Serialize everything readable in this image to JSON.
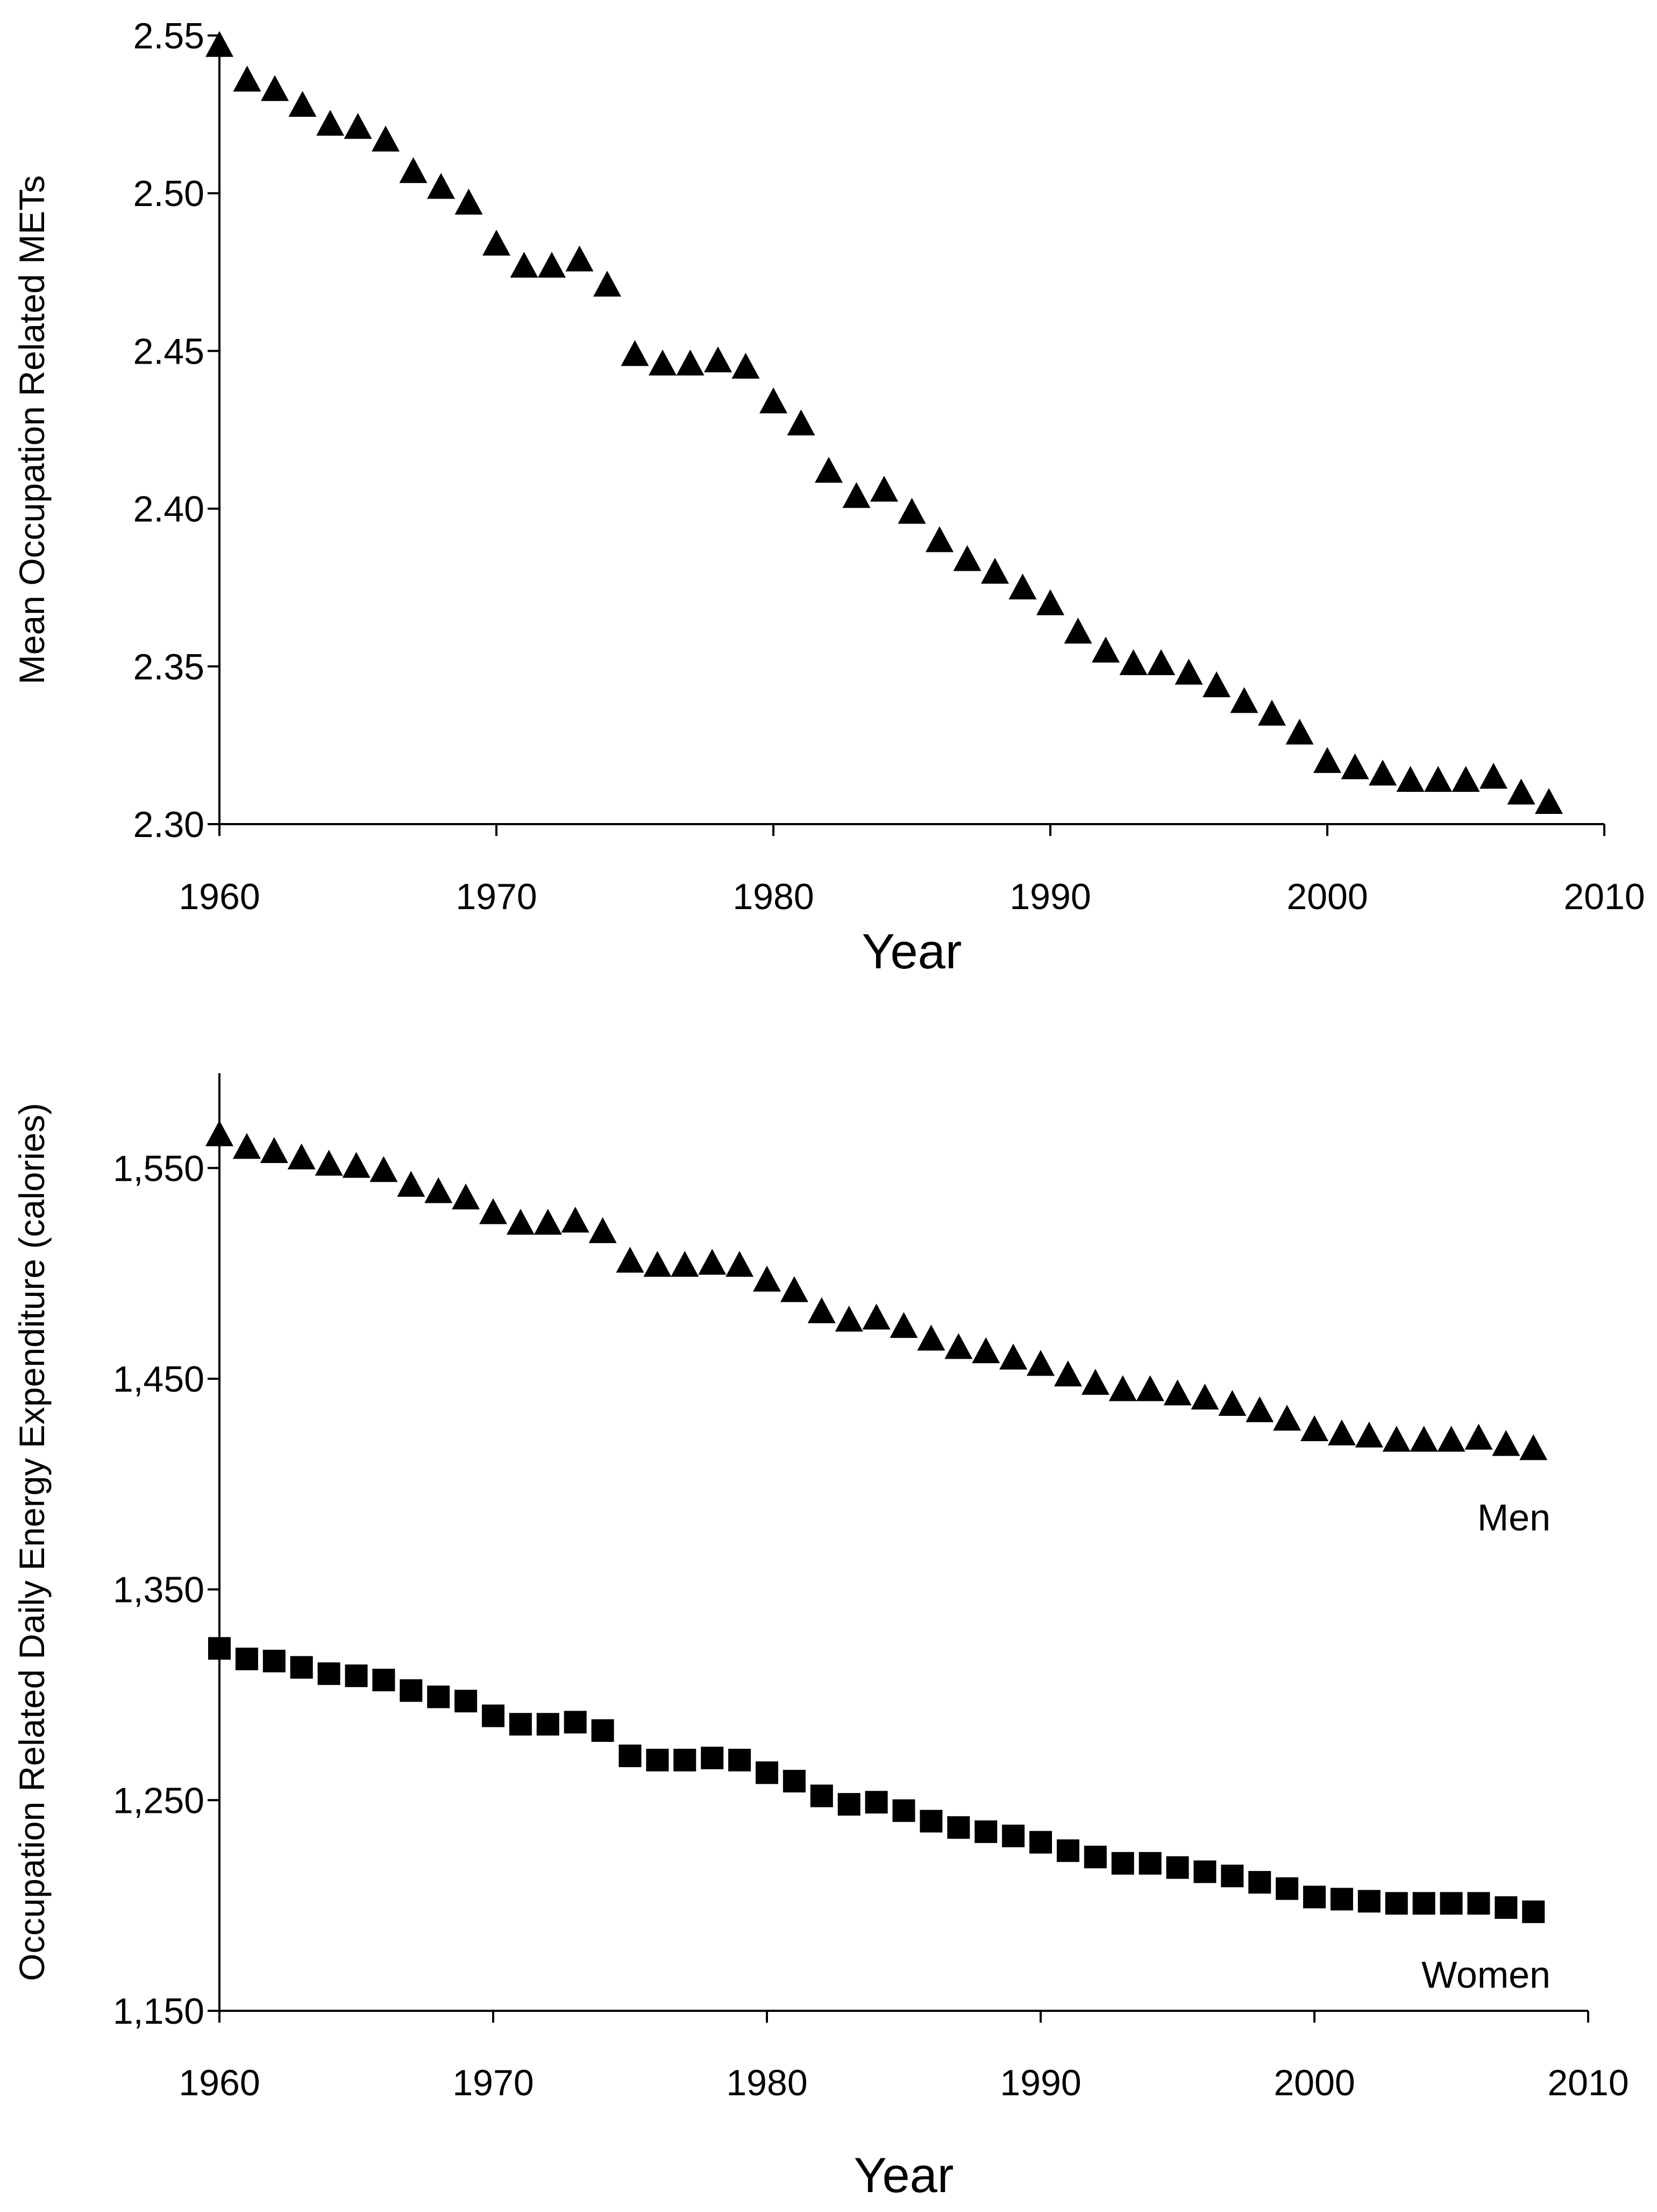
{
  "chart_data": [
    {
      "type": "scatter",
      "title": "",
      "xlabel": "Year",
      "ylabel": "Mean Occupation Related METs",
      "xlim": [
        1960,
        2010
      ],
      "ylim": [
        2.3,
        2.55
      ],
      "x_ticks": [
        "1960",
        "1970",
        "1980",
        "1990",
        "2000",
        "2010"
      ],
      "y_ticks": [
        "2.30",
        "2.35",
        "2.40",
        "2.45",
        "2.50",
        "2.55"
      ],
      "grid": false,
      "series": [
        {
          "marker": "triangle",
          "color": "#000000",
          "x": [
            1960,
            1961,
            1962,
            1963,
            1964,
            1965,
            1966,
            1967,
            1968,
            1969,
            1970,
            1971,
            1972,
            1973,
            1974,
            1975,
            1976,
            1977,
            1978,
            1979,
            1980,
            1981,
            1982,
            1983,
            1984,
            1985,
            1986,
            1987,
            1988,
            1989,
            1990,
            1991,
            1992,
            1993,
            1994,
            1995,
            1996,
            1997,
            1998,
            1999,
            2000,
            2001,
            2002,
            2003,
            2004,
            2005,
            2006,
            2007,
            2008
          ],
          "values": [
            2.547,
            2.536,
            2.533,
            2.528,
            2.522,
            2.521,
            2.517,
            2.507,
            2.502,
            2.497,
            2.484,
            2.477,
            2.477,
            2.479,
            2.471,
            2.449,
            2.446,
            2.446,
            2.447,
            2.445,
            2.434,
            2.427,
            2.412,
            2.404,
            2.406,
            2.399,
            2.39,
            2.384,
            2.38,
            2.375,
            2.37,
            2.361,
            2.355,
            2.351,
            2.351,
            2.348,
            2.344,
            2.339,
            2.335,
            2.329,
            2.32,
            2.318,
            2.316,
            2.314,
            2.314,
            2.314,
            2.315,
            2.31,
            2.307
          ]
        }
      ]
    },
    {
      "type": "scatter",
      "title": "",
      "xlabel": "Year",
      "ylabel": "Occupation Related Daily Energy Expenditure (calories)",
      "xlim": [
        1960,
        2010
      ],
      "ylim": [
        1150,
        1595
      ],
      "x_ticks": [
        "1960",
        "1970",
        "1980",
        "1990",
        "2000",
        "2010"
      ],
      "y_ticks": [
        "1,150",
        "1,250",
        "1,350",
        "1,450",
        "1,550"
      ],
      "grid": false,
      "series": [
        {
          "name": "Men",
          "marker": "triangle",
          "color": "#000000",
          "x": [
            1960,
            1961,
            1962,
            1963,
            1964,
            1965,
            1966,
            1967,
            1968,
            1969,
            1970,
            1971,
            1972,
            1973,
            1974,
            1975,
            1976,
            1977,
            1978,
            1979,
            1980,
            1981,
            1982,
            1983,
            1984,
            1985,
            1986,
            1987,
            1988,
            1989,
            1990,
            1991,
            1992,
            1993,
            1994,
            1995,
            1996,
            1997,
            1998,
            1999,
            2000,
            2001,
            2002,
            2003,
            2004,
            2005,
            2006,
            2007,
            2008
          ],
          "values": [
            1566,
            1560,
            1558,
            1555,
            1552,
            1551,
            1549,
            1542,
            1539,
            1536,
            1529,
            1524,
            1524,
            1525,
            1520,
            1506,
            1504,
            1504,
            1505,
            1504,
            1497,
            1492,
            1482,
            1478,
            1479,
            1475,
            1469,
            1465,
            1463,
            1460,
            1457,
            1452,
            1448,
            1445,
            1445,
            1443,
            1441,
            1438,
            1435,
            1431,
            1426,
            1424,
            1423,
            1421,
            1421,
            1421,
            1422,
            1419,
            1417
          ]
        },
        {
          "name": "Women",
          "marker": "square",
          "color": "#000000",
          "x": [
            1960,
            1961,
            1962,
            1963,
            1964,
            1965,
            1966,
            1967,
            1968,
            1969,
            1970,
            1971,
            1972,
            1973,
            1974,
            1975,
            1976,
            1977,
            1978,
            1979,
            1980,
            1981,
            1982,
            1983,
            1984,
            1985,
            1986,
            1987,
            1988,
            1989,
            1990,
            1991,
            1992,
            1993,
            1994,
            1995,
            1996,
            1997,
            1998,
            1999,
            2000,
            2001,
            2002,
            2003,
            2004,
            2005,
            2006,
            2007,
            2008
          ],
          "values": [
            1322,
            1317,
            1316,
            1313,
            1310,
            1309,
            1307,
            1302,
            1299,
            1297,
            1290,
            1286,
            1286,
            1287,
            1283,
            1271,
            1269,
            1269,
            1270,
            1269,
            1263,
            1259,
            1252,
            1248,
            1249,
            1245,
            1240,
            1237,
            1235,
            1233,
            1230,
            1226,
            1223,
            1220,
            1220,
            1218,
            1216,
            1214,
            1211,
            1208,
            1204,
            1203,
            1202,
            1201,
            1201,
            1201,
            1201,
            1199,
            1197
          ]
        }
      ]
    }
  ]
}
